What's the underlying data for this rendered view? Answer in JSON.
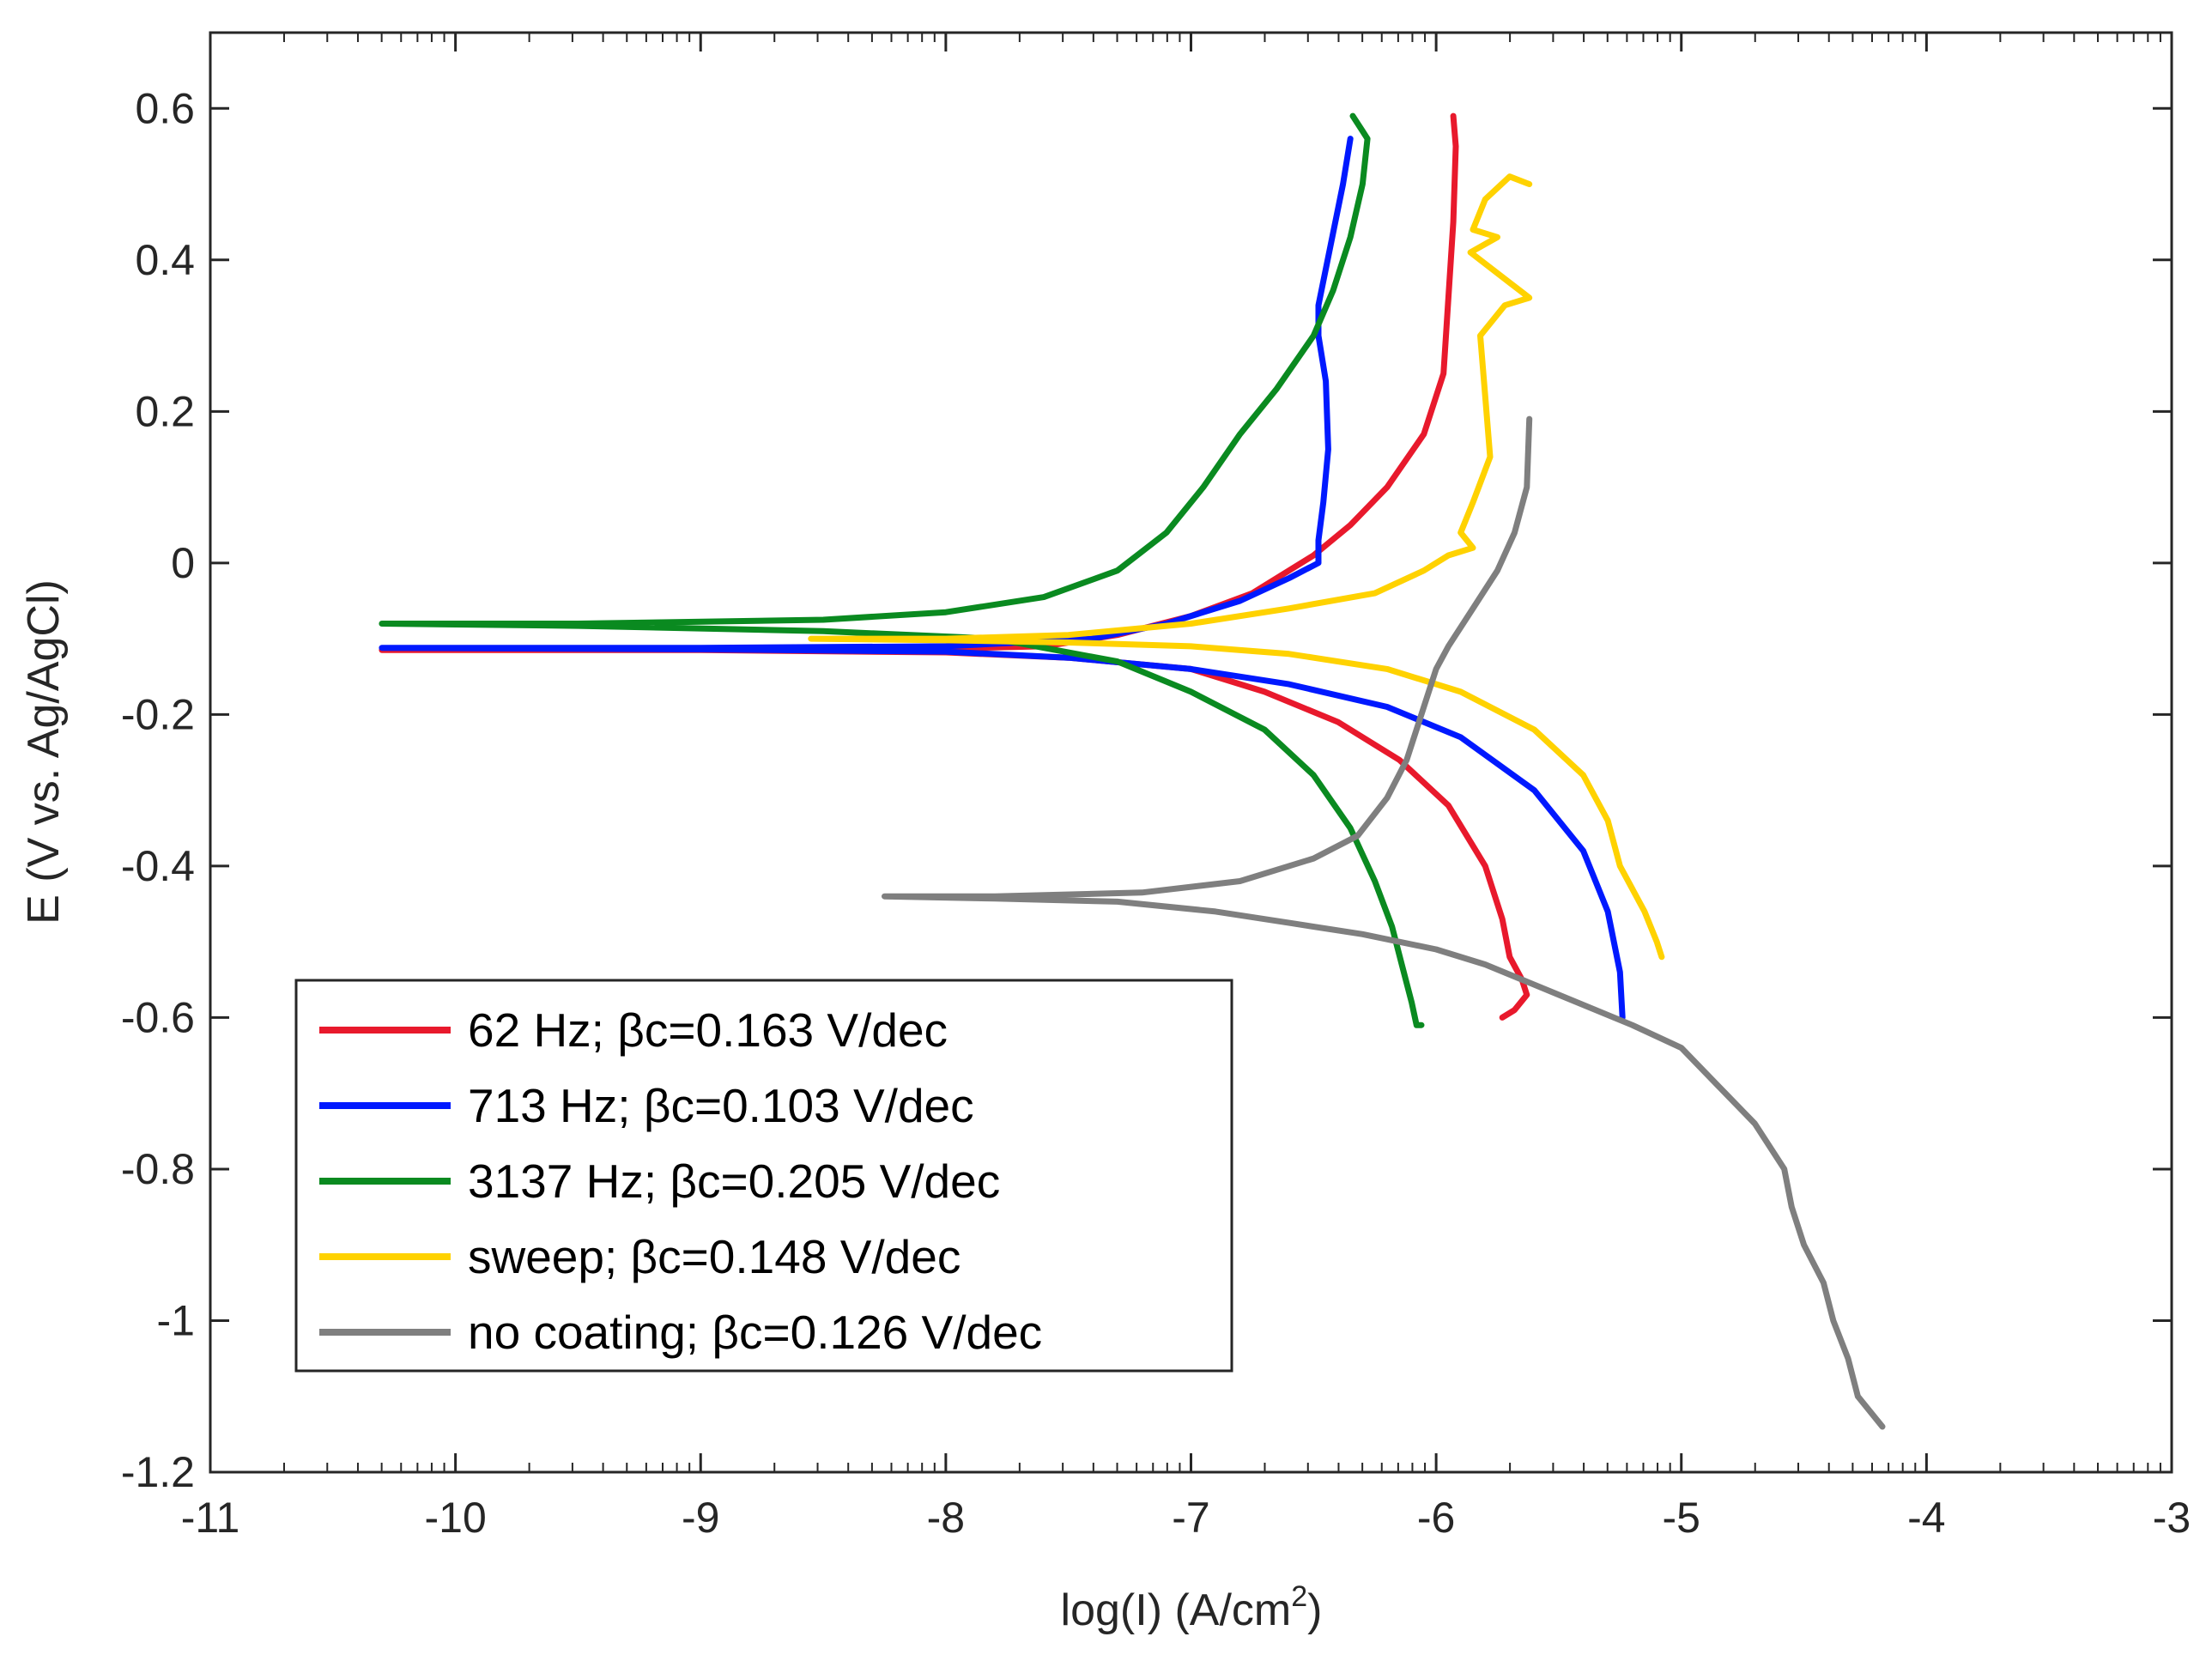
{
  "chart_data": {
    "type": "line",
    "title": "",
    "xlabel": "log(I) (A/cm",
    "xlabel_sup": "2",
    "xlabel_end": ")",
    "ylabel": "E (V vs. Ag/AgCl)",
    "xlim": [
      -11,
      -3
    ],
    "ylim": [
      -1.2,
      0.7
    ],
    "xticks": [
      -11,
      -10,
      -9,
      -8,
      -7,
      -6,
      -5,
      -4,
      -3
    ],
    "xtick_labels": [
      "-11",
      "-10",
      "-9",
      "-8",
      "-7",
      "-6",
      "-5",
      "-4",
      "-3"
    ],
    "yticks": [
      0.6,
      0.4,
      0.2,
      0,
      -0.2,
      -0.4,
      -0.6,
      -0.8,
      -1,
      -1.2
    ],
    "ytick_labels": [
      "0.6",
      "0.4",
      "0.2",
      "0",
      "-0.2",
      "-0.4",
      "-0.6",
      "-0.8",
      "-1",
      "-1.2"
    ],
    "grid": false,
    "legend_position": "bottom-left",
    "series": [
      {
        "name": "62 Hz; βc=0.163 V/dec",
        "color": "#e8192c",
        "points": [
          [
            -5.93,
            0.59
          ],
          [
            -5.92,
            0.55
          ],
          [
            -5.93,
            0.45
          ],
          [
            -5.95,
            0.35
          ],
          [
            -5.97,
            0.25
          ],
          [
            -6.05,
            0.17
          ],
          [
            -6.2,
            0.1
          ],
          [
            -6.35,
            0.05
          ],
          [
            -6.5,
            0.01
          ],
          [
            -6.75,
            -0.04
          ],
          [
            -7.0,
            -0.07
          ],
          [
            -7.3,
            -0.095
          ],
          [
            -7.6,
            -0.11
          ],
          [
            -8.0,
            -0.113
          ],
          [
            -9.0,
            -0.115
          ],
          [
            -10.3,
            -0.115
          ],
          [
            -9.0,
            -0.115
          ],
          [
            -8.0,
            -0.118
          ],
          [
            -7.5,
            -0.125
          ],
          [
            -7.0,
            -0.14
          ],
          [
            -6.7,
            -0.17
          ],
          [
            -6.4,
            -0.21
          ],
          [
            -6.15,
            -0.26
          ],
          [
            -5.95,
            -0.32
          ],
          [
            -5.8,
            -0.4
          ],
          [
            -5.73,
            -0.47
          ],
          [
            -5.7,
            -0.52
          ],
          [
            -5.65,
            -0.55
          ],
          [
            -5.63,
            -0.57
          ],
          [
            -5.68,
            -0.59
          ],
          [
            -5.73,
            -0.6
          ]
        ]
      },
      {
        "name": "713 Hz; βc=0.103 V/dec",
        "color": "#0019ff",
        "points": [
          [
            -6.35,
            0.56
          ],
          [
            -6.38,
            0.5
          ],
          [
            -6.43,
            0.42
          ],
          [
            -6.48,
            0.34
          ],
          [
            -6.48,
            0.3
          ],
          [
            -6.45,
            0.24
          ],
          [
            -6.44,
            0.15
          ],
          [
            -6.46,
            0.08
          ],
          [
            -6.48,
            0.03
          ],
          [
            -6.48,
            0.0
          ],
          [
            -6.6,
            -0.02
          ],
          [
            -6.8,
            -0.05
          ],
          [
            -7.1,
            -0.08
          ],
          [
            -7.4,
            -0.1
          ],
          [
            -8.0,
            -0.11
          ],
          [
            -9.0,
            -0.112
          ],
          [
            -10.3,
            -0.112
          ],
          [
            -9.0,
            -0.114
          ],
          [
            -8.0,
            -0.117
          ],
          [
            -7.5,
            -0.125
          ],
          [
            -7.0,
            -0.14
          ],
          [
            -6.6,
            -0.16
          ],
          [
            -6.2,
            -0.19
          ],
          [
            -5.9,
            -0.23
          ],
          [
            -5.6,
            -0.3
          ],
          [
            -5.4,
            -0.38
          ],
          [
            -5.3,
            -0.46
          ],
          [
            -5.25,
            -0.54
          ],
          [
            -5.24,
            -0.6
          ]
        ]
      },
      {
        "name": "3137 Hz; βc=0.205 V/dec",
        "color": "#0a8a20",
        "points": [
          [
            -6.34,
            0.59
          ],
          [
            -6.3,
            0.57
          ],
          [
            -6.28,
            0.56
          ],
          [
            -6.3,
            0.5
          ],
          [
            -6.35,
            0.43
          ],
          [
            -6.42,
            0.36
          ],
          [
            -6.5,
            0.3
          ],
          [
            -6.65,
            0.23
          ],
          [
            -6.8,
            0.17
          ],
          [
            -6.95,
            0.1
          ],
          [
            -7.1,
            0.04
          ],
          [
            -7.3,
            -0.01
          ],
          [
            -7.6,
            -0.045
          ],
          [
            -8.0,
            -0.065
          ],
          [
            -8.5,
            -0.075
          ],
          [
            -9.5,
            -0.08
          ],
          [
            -10.3,
            -0.08
          ],
          [
            -9.5,
            -0.083
          ],
          [
            -8.5,
            -0.09
          ],
          [
            -7.8,
            -0.1
          ],
          [
            -7.3,
            -0.13
          ],
          [
            -7.0,
            -0.17
          ],
          [
            -6.7,
            -0.22
          ],
          [
            -6.5,
            -0.28
          ],
          [
            -6.35,
            -0.35
          ],
          [
            -6.25,
            -0.42
          ],
          [
            -6.18,
            -0.48
          ],
          [
            -6.14,
            -0.53
          ],
          [
            -6.1,
            -0.58
          ],
          [
            -6.08,
            -0.61
          ],
          [
            -6.06,
            -0.61
          ]
        ]
      },
      {
        "name": "sweep; βc=0.148 V/dec",
        "color": "#ffd200",
        "points": [
          [
            -5.62,
            0.5
          ],
          [
            -5.7,
            0.51
          ],
          [
            -5.8,
            0.48
          ],
          [
            -5.85,
            0.44
          ],
          [
            -5.75,
            0.43
          ],
          [
            -5.86,
            0.41
          ],
          [
            -5.7,
            0.37
          ],
          [
            -5.62,
            0.35
          ],
          [
            -5.72,
            0.34
          ],
          [
            -5.82,
            0.3
          ],
          [
            -5.8,
            0.22
          ],
          [
            -5.78,
            0.14
          ],
          [
            -5.85,
            0.08
          ],
          [
            -5.9,
            0.04
          ],
          [
            -5.85,
            0.02
          ],
          [
            -5.95,
            0.01
          ],
          [
            -6.05,
            -0.01
          ],
          [
            -6.25,
            -0.04
          ],
          [
            -6.6,
            -0.06
          ],
          [
            -7.0,
            -0.08
          ],
          [
            -7.5,
            -0.095
          ],
          [
            -8.0,
            -0.1
          ],
          [
            -8.55,
            -0.1
          ],
          [
            -8.0,
            -0.102
          ],
          [
            -7.5,
            -0.105
          ],
          [
            -7.0,
            -0.11
          ],
          [
            -6.6,
            -0.12
          ],
          [
            -6.2,
            -0.14
          ],
          [
            -5.9,
            -0.17
          ],
          [
            -5.6,
            -0.22
          ],
          [
            -5.4,
            -0.28
          ],
          [
            -5.3,
            -0.34
          ],
          [
            -5.25,
            -0.4
          ],
          [
            -5.15,
            -0.46
          ],
          [
            -5.1,
            -0.5
          ],
          [
            -5.08,
            -0.52
          ]
        ]
      },
      {
        "name": "no coating; βc=0.126 V/dec",
        "color": "#7f7f7f",
        "points": [
          [
            -5.62,
            0.19
          ],
          [
            -5.63,
            0.1
          ],
          [
            -5.68,
            0.04
          ],
          [
            -5.75,
            -0.01
          ],
          [
            -5.85,
            -0.06
          ],
          [
            -5.95,
            -0.11
          ],
          [
            -6.0,
            -0.14
          ],
          [
            -6.05,
            -0.19
          ],
          [
            -6.12,
            -0.26
          ],
          [
            -6.2,
            -0.31
          ],
          [
            -6.32,
            -0.36
          ],
          [
            -6.5,
            -0.39
          ],
          [
            -6.8,
            -0.42
          ],
          [
            -7.2,
            -0.435
          ],
          [
            -7.8,
            -0.44
          ],
          [
            -8.25,
            -0.44
          ],
          [
            -7.8,
            -0.443
          ],
          [
            -7.3,
            -0.447
          ],
          [
            -6.9,
            -0.46
          ],
          [
            -6.6,
            -0.475
          ],
          [
            -6.3,
            -0.49
          ],
          [
            -6.0,
            -0.51
          ],
          [
            -5.8,
            -0.53
          ],
          [
            -5.5,
            -0.57
          ],
          [
            -5.2,
            -0.61
          ],
          [
            -5.0,
            -0.64
          ],
          [
            -4.85,
            -0.69
          ],
          [
            -4.7,
            -0.74
          ],
          [
            -4.58,
            -0.8
          ],
          [
            -4.55,
            -0.85
          ],
          [
            -4.5,
            -0.9
          ],
          [
            -4.42,
            -0.95
          ],
          [
            -4.38,
            -1.0
          ],
          [
            -4.32,
            -1.05
          ],
          [
            -4.28,
            -1.1
          ],
          [
            -4.18,
            -1.14
          ]
        ]
      }
    ]
  }
}
